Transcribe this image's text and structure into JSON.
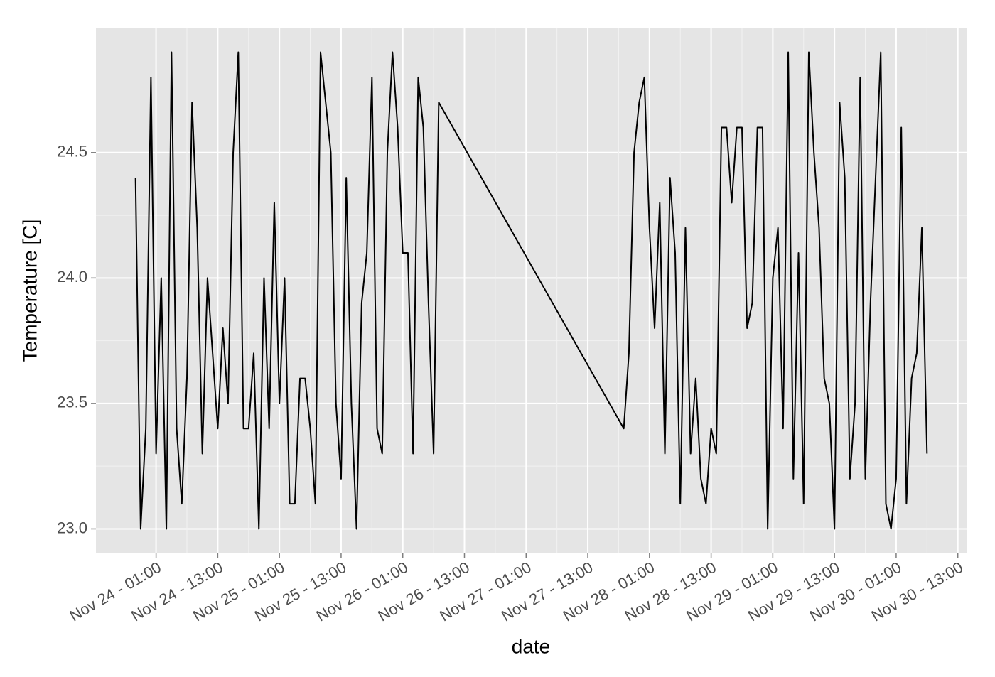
{
  "chart_data": {
    "type": "line",
    "xlabel": "date",
    "ylabel": "Temperature [C]",
    "x": [
      "Nov 23 - 21:00",
      "Nov 23 - 22:00",
      "Nov 23 - 23:00",
      "Nov 24 - 00:00",
      "Nov 24 - 01:00",
      "Nov 24 - 02:00",
      "Nov 24 - 03:00",
      "Nov 24 - 04:00",
      "Nov 24 - 05:00",
      "Nov 24 - 06:00",
      "Nov 24 - 07:00",
      "Nov 24 - 08:00",
      "Nov 24 - 09:00",
      "Nov 24 - 10:00",
      "Nov 24 - 11:00",
      "Nov 24 - 12:00",
      "Nov 24 - 13:00",
      "Nov 24 - 14:00",
      "Nov 24 - 15:00",
      "Nov 24 - 16:00",
      "Nov 24 - 17:00",
      "Nov 24 - 18:00",
      "Nov 24 - 19:00",
      "Nov 24 - 20:00",
      "Nov 24 - 21:00",
      "Nov 24 - 22:00",
      "Nov 24 - 23:00",
      "Nov 25 - 00:00",
      "Nov 25 - 01:00",
      "Nov 25 - 02:00",
      "Nov 25 - 03:00",
      "Nov 25 - 04:00",
      "Nov 25 - 05:00",
      "Nov 25 - 06:00",
      "Nov 25 - 07:00",
      "Nov 25 - 08:00",
      "Nov 25 - 09:00",
      "Nov 25 - 10:00",
      "Nov 25 - 11:00",
      "Nov 25 - 12:00",
      "Nov 25 - 13:00",
      "Nov 25 - 14:00",
      "Nov 25 - 15:00",
      "Nov 25 - 16:00",
      "Nov 25 - 17:00",
      "Nov 25 - 18:00",
      "Nov 25 - 19:00",
      "Nov 25 - 20:00",
      "Nov 25 - 21:00",
      "Nov 25 - 22:00",
      "Nov 25 - 23:00",
      "Nov 26 - 00:00",
      "Nov 26 - 01:00",
      "Nov 26 - 02:00",
      "Nov 26 - 03:00",
      "Nov 26 - 04:00",
      "Nov 26 - 05:00",
      "Nov 26 - 06:00",
      "Nov 26 - 07:00",
      "Nov 26 - 08:00",
      "Nov 27 - 20:00",
      "Nov 27 - 21:00",
      "Nov 27 - 22:00",
      "Nov 27 - 23:00",
      "Nov 28 - 00:00",
      "Nov 28 - 01:00",
      "Nov 28 - 02:00",
      "Nov 28 - 03:00",
      "Nov 28 - 04:00",
      "Nov 28 - 05:00",
      "Nov 28 - 06:00",
      "Nov 28 - 07:00",
      "Nov 28 - 08:00",
      "Nov 28 - 09:00",
      "Nov 28 - 10:00",
      "Nov 28 - 11:00",
      "Nov 28 - 12:00",
      "Nov 28 - 13:00",
      "Nov 28 - 14:00",
      "Nov 28 - 15:00",
      "Nov 28 - 16:00",
      "Nov 28 - 17:00",
      "Nov 28 - 18:00",
      "Nov 28 - 19:00",
      "Nov 28 - 20:00",
      "Nov 28 - 21:00",
      "Nov 28 - 22:00",
      "Nov 28 - 23:00",
      "Nov 29 - 00:00",
      "Nov 29 - 01:00",
      "Nov 29 - 02:00",
      "Nov 29 - 03:00",
      "Nov 29 - 04:00",
      "Nov 29 - 05:00",
      "Nov 29 - 06:00",
      "Nov 29 - 07:00",
      "Nov 29 - 08:00",
      "Nov 29 - 09:00",
      "Nov 29 - 10:00",
      "Nov 29 - 11:00",
      "Nov 29 - 12:00",
      "Nov 29 - 13:00",
      "Nov 29 - 14:00",
      "Nov 29 - 15:00",
      "Nov 29 - 16:00",
      "Nov 29 - 17:00",
      "Nov 29 - 18:00",
      "Nov 29 - 19:00",
      "Nov 29 - 20:00",
      "Nov 29 - 21:00",
      "Nov 29 - 22:00",
      "Nov 29 - 23:00",
      "Nov 30 - 00:00",
      "Nov 30 - 01:00",
      "Nov 30 - 02:00",
      "Nov 30 - 03:00",
      "Nov 30 - 04:00",
      "Nov 30 - 05:00",
      "Nov 30 - 06:00",
      "Nov 30 - 07:00"
    ],
    "series": [
      {
        "name": "temperature",
        "color": "#000000",
        "values": [
          24.4,
          23.0,
          23.4,
          24.8,
          23.3,
          24.0,
          23.0,
          24.9,
          23.4,
          23.1,
          23.6,
          24.7,
          24.2,
          23.3,
          24.0,
          23.7,
          23.4,
          23.8,
          23.5,
          24.5,
          24.9,
          23.4,
          23.4,
          23.7,
          23.0,
          24.0,
          23.4,
          24.3,
          23.5,
          24.0,
          23.1,
          23.1,
          23.6,
          23.6,
          23.4,
          23.1,
          24.9,
          24.7,
          24.5,
          23.5,
          23.2,
          24.4,
          23.5,
          23.0,
          23.9,
          24.1,
          24.8,
          23.4,
          23.3,
          24.5,
          24.9,
          24.6,
          24.1,
          24.1,
          23.3,
          24.8,
          24.6,
          23.9,
          23.3,
          24.7,
          23.4,
          23.7,
          24.5,
          24.7,
          24.8,
          24.2,
          23.8,
          24.3,
          23.3,
          24.4,
          24.1,
          23.1,
          24.2,
          23.3,
          23.6,
          23.2,
          23.1,
          23.4,
          23.3,
          24.6,
          24.6,
          24.3,
          24.6,
          24.6,
          23.8,
          23.9,
          24.6,
          24.6,
          23.0,
          24.0,
          24.2,
          23.4,
          24.9,
          23.2,
          24.1,
          23.1,
          24.9,
          24.5,
          24.2,
          23.6,
          23.5,
          23.0,
          24.7,
          24.4,
          23.2,
          23.5,
          24.8,
          23.2,
          23.9,
          24.4,
          24.9,
          23.1,
          23.0,
          23.2,
          24.6,
          23.1,
          23.6,
          23.7,
          24.2,
          23.3
        ]
      }
    ],
    "xlim": [
      "Nov 23 - 13:18",
      "Nov 30 - 14:42"
    ],
    "xticks": [
      "Nov 24 - 01:00",
      "Nov 24 - 13:00",
      "Nov 25 - 01:00",
      "Nov 25 - 13:00",
      "Nov 26 - 01:00",
      "Nov 26 - 13:00",
      "Nov 27 - 01:00",
      "Nov 27 - 13:00",
      "Nov 28 - 01:00",
      "Nov 28 - 13:00",
      "Nov 29 - 01:00",
      "Nov 29 - 13:00",
      "Nov 30 - 01:00",
      "Nov 30 - 13:00"
    ],
    "ylim": [
      22.905,
      24.995
    ],
    "yticks": [
      {
        "value": 23,
        "label": "23.0"
      },
      23.5,
      {
        "value": 24,
        "label": "24.0"
      },
      24.5
    ],
    "grid": true
  }
}
